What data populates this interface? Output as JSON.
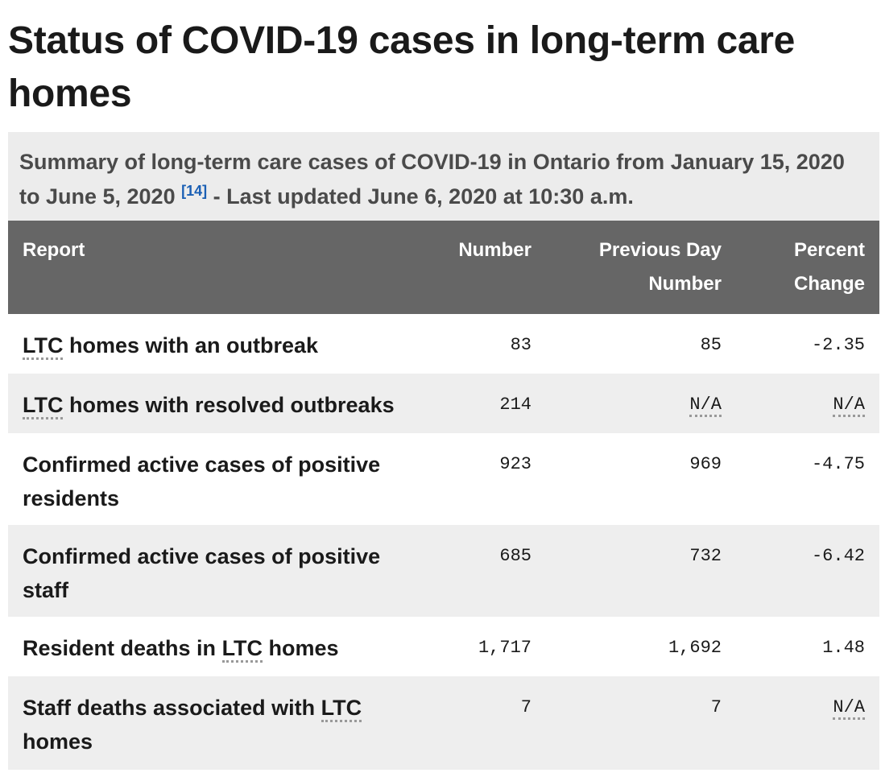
{
  "title": "Status of COVID-19 cases in long-term care homes",
  "caption": {
    "text": "Summary of long-term care cases of COVID-19 in Ontario from January 15, 2020 to June 5, 2020",
    "ref": "[14]",
    "updated": "- Last updated June 6, 2020 at 10:30 a.m."
  },
  "table": {
    "headers": {
      "report": "Report",
      "number": "Number",
      "previous": "Previous Day Number",
      "percent": "Percent Change"
    },
    "rows": [
      {
        "label_pre": "",
        "abbr": "LTC",
        "label_post": " homes with an outbreak",
        "number": "83",
        "previous": "85",
        "percent": "-2.35"
      },
      {
        "label_pre": "",
        "abbr": "LTC",
        "label_post": " homes with resolved outbreaks",
        "number": "214",
        "previous": "N/A",
        "percent": "N/A"
      },
      {
        "label_pre": "Confirmed active cases of positive residents",
        "abbr": "",
        "label_post": "",
        "number": "923",
        "previous": "969",
        "percent": "-4.75"
      },
      {
        "label_pre": "Confirmed active cases of positive staff",
        "abbr": "",
        "label_post": "",
        "number": "685",
        "previous": "732",
        "percent": "-6.42"
      },
      {
        "label_pre": "Resident deaths in ",
        "abbr": "LTC",
        "label_post": " homes",
        "number": "1,717",
        "previous": "1,692",
        "percent": "1.48"
      },
      {
        "label_pre": "Staff deaths associated with ",
        "abbr": "LTC",
        "label_post": " homes",
        "number": "7",
        "previous": "7",
        "percent": "N/A"
      }
    ]
  }
}
